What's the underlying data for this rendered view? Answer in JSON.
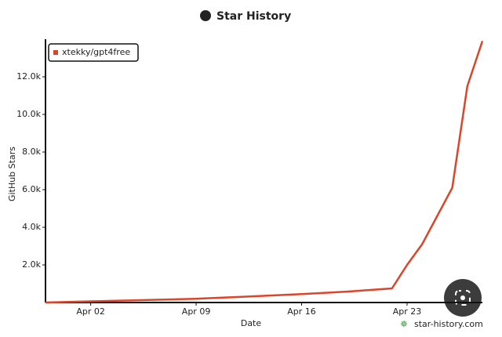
{
  "chart_data": {
    "type": "line",
    "title": "Star History",
    "x_label": "Date",
    "y_label": "GitHub Stars",
    "x": [
      "Mar 30",
      "Apr 02",
      "Apr 05",
      "Apr 09",
      "Apr 12",
      "Apr 16",
      "Apr 19",
      "Apr 22",
      "Apr 23",
      "Apr 24",
      "Apr 25",
      "Apr 26",
      "Apr 27",
      "Apr 28"
    ],
    "series": [
      {
        "name": "xtekky/gpt4free",
        "color": "#dd4528",
        "values": [
          0,
          60,
          120,
          200,
          300,
          450,
          580,
          750,
          2000,
          3100,
          4600,
          6100,
          11500,
          13900
        ]
      }
    ],
    "xlim": [
      "Mar 30",
      "Apr 28"
    ],
    "xticks": [
      "Apr 02",
      "Apr 09",
      "Apr 16",
      "Apr 23"
    ],
    "ylim": [
      0,
      14000
    ],
    "yticks": [
      {
        "value": 2000,
        "label": "2.0k"
      },
      {
        "value": 4000,
        "label": "4.0k"
      },
      {
        "value": 6000,
        "label": "6.0k"
      },
      {
        "value": 8000,
        "label": "8.0k"
      },
      {
        "value": 10000,
        "label": "10.0k"
      },
      {
        "value": 12000,
        "label": "12.0k"
      }
    ],
    "legend": "top-left",
    "watermark": "star-history.com"
  }
}
